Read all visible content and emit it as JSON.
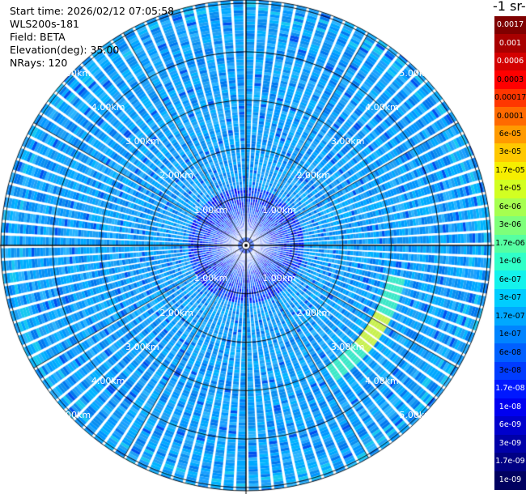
{
  "info": {
    "start_time": "Start time: 2026/02/12 07:05:58",
    "instrument": "WLS200s-181",
    "field": "Field: BETA",
    "elevation": "Elevation(deg): 35.00",
    "nrays": "NRays: 120"
  },
  "colorbar": {
    "title_fragment": "-1 sr-",
    "labels": [
      "0.0017",
      "0.001",
      "0.0006",
      "0.0003",
      "0.00017",
      "0.0001",
      "6e-05",
      "3e-05",
      "1.7e-05",
      "1e-05",
      "6e-06",
      "3e-06",
      "1.7e-06",
      "1e-06",
      "6e-07",
      "3e-07",
      "1.7e-07",
      "1e-07",
      "6e-08",
      "3e-08",
      "1.7e-08",
      "1e-08",
      "6e-09",
      "3e-09",
      "1.7e-09",
      "1e-09"
    ],
    "colors": [
      "#7f0000",
      "#a80000",
      "#d40000",
      "#ff0000",
      "#ff3600",
      "#ff6a00",
      "#ff9a00",
      "#ffc800",
      "#f6ee00",
      "#d2ff22",
      "#a6ff50",
      "#7eff7a",
      "#56ffa2",
      "#30ffc8",
      "#14f2ec",
      "#00cdff",
      "#00a8ff",
      "#0084ff",
      "#0060ff",
      "#003cff",
      "#0018ff",
      "#0000f0",
      "#0000cc",
      "#0000a8",
      "#000084",
      "#000060"
    ],
    "text_colors": [
      "#ffffff",
      "#ffffff",
      "#ffffff",
      "#000000",
      "#000000",
      "#000000",
      "#000000",
      "#000000",
      "#000000",
      "#000000",
      "#000000",
      "#000000",
      "#000000",
      "#000000",
      "#000000",
      "#000000",
      "#000000",
      "#000000",
      "#000000",
      "#000000",
      "#ffffff",
      "#ffffff",
      "#ffffff",
      "#ffffff",
      "#ffffff",
      "#ffffff"
    ]
  },
  "chart_data": {
    "type": "heatmap",
    "projection": "polar (PPI scan)",
    "nrays": 120,
    "range_rings_km": [
      1,
      2,
      3,
      4,
      5
    ],
    "range_labels": [
      "1.00km",
      "2.00km",
      "3.00km",
      "4.00km",
      "5.00km"
    ],
    "max_range_km": 5.3,
    "background_beta": "3e-08",
    "features": [
      {
        "description": "enhanced backscatter arc",
        "azimuth_deg_range": [
          100,
          145
        ],
        "range_km": [
          3.0,
          3.3
        ],
        "beta": "3e-07"
      }
    ],
    "colorscale": "log10(beta) from 1e-09 to 0.0017"
  }
}
